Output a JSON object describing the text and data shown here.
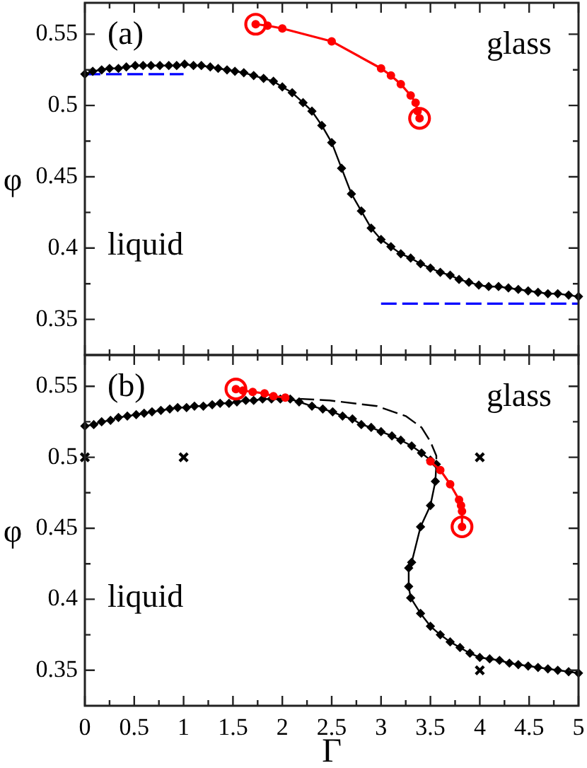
{
  "chart_data": [
    {
      "type": "line",
      "annotations": [
        "(a)",
        "glass",
        "liquid"
      ],
      "ylabel": "φ",
      "tick_labels": "y",
      "xlim": [
        0,
        5
      ],
      "xticks": [
        0,
        {
          "value": 0.25,
          "label": null
        },
        0.5,
        {
          "value": 0.75,
          "label": null
        },
        1,
        {
          "value": 1.25,
          "label": null
        },
        1.5,
        {
          "value": 1.75,
          "label": null
        },
        2,
        {
          "value": 2.25,
          "label": null
        },
        2.5,
        {
          "value": 2.75,
          "label": null
        },
        3,
        {
          "value": 3.25,
          "label": null
        },
        3.5,
        {
          "value": 3.75,
          "label": null
        },
        4,
        {
          "value": 4.25,
          "label": null
        },
        4.5,
        {
          "value": 4.75,
          "label": null
        },
        5
      ],
      "ylim": [
        0.325,
        0.572
      ],
      "yticks": [
        0.35,
        {
          "value": 0.375,
          "label": null
        },
        0.4,
        {
          "value": 0.425,
          "label": null
        },
        0.45,
        {
          "value": 0.475,
          "label": null
        },
        0.5,
        {
          "value": 0.525,
          "label": null
        },
        0.55
      ],
      "series": [
        {
          "type": "line",
          "color": "#0000ff",
          "line_style": "dashed",
          "marker": "none",
          "x": [
            0,
            1
          ],
          "values": [
            0.522,
            0.522
          ]
        },
        {
          "type": "line",
          "color": "#0000ff",
          "line_style": "dashed",
          "marker": "none",
          "x": [
            3,
            5
          ],
          "values": [
            0.361,
            0.361
          ]
        },
        {
          "type": "line",
          "color": "#000000",
          "marker": "diamond",
          "x": [
            0,
            0.08,
            0.17,
            0.25,
            0.34,
            0.42,
            0.51,
            0.59,
            0.67,
            0.76,
            0.85,
            0.93,
            1.01,
            1.1,
            1.18,
            1.27,
            1.35,
            1.44,
            1.52,
            1.61,
            1.71,
            1.81,
            1.91,
            2.0,
            2.1,
            2.21,
            2.3,
            2.4,
            2.5,
            2.6,
            2.7,
            2.8,
            2.9,
            3.0,
            3.1,
            3.2,
            3.3,
            3.4,
            3.5,
            3.6,
            3.7,
            3.79,
            3.89,
            3.99,
            4.09,
            4.19,
            4.29,
            4.39,
            4.49,
            4.59,
            4.69,
            4.79,
            4.9,
            5.0
          ],
          "values": [
            0.522,
            0.524,
            0.525,
            0.526,
            0.526,
            0.527,
            0.528,
            0.528,
            0.528,
            0.528,
            0.528,
            0.528,
            0.529,
            0.528,
            0.528,
            0.527,
            0.526,
            0.525,
            0.524,
            0.523,
            0.521,
            0.519,
            0.517,
            0.513,
            0.509,
            0.502,
            0.496,
            0.486,
            0.474,
            0.456,
            0.438,
            0.426,
            0.414,
            0.406,
            0.401,
            0.396,
            0.393,
            0.389,
            0.386,
            0.383,
            0.381,
            0.378,
            0.376,
            0.374,
            0.373,
            0.373,
            0.372,
            0.371,
            0.37,
            0.369,
            0.368,
            0.368,
            0.367,
            0.366
          ]
        },
        {
          "type": "line",
          "color": "#ff0000",
          "marker": "circle",
          "x": [
            1.73,
            1.85,
            2.0,
            2.5,
            3.0,
            3.1,
            3.2,
            3.3,
            3.35,
            3.37,
            3.39
          ],
          "values": [
            0.557,
            0.556,
            0.554,
            0.545,
            0.526,
            0.521,
            0.515,
            0.507,
            0.502,
            0.496,
            0.491
          ]
        },
        {
          "type": "scatter",
          "color": "#ff0000",
          "marker": "circle",
          "x": [
            1.73,
            3.39
          ],
          "values": [
            0.557,
            0.491
          ]
        }
      ]
    },
    {
      "type": "line",
      "annotations": [
        "(b)",
        "glass",
        "liquid"
      ],
      "ylabel": "φ",
      "xlabel": "Γ",
      "xlim": [
        0,
        5
      ],
      "xticks": [
        0,
        {
          "value": 0.25,
          "label": null
        },
        0.5,
        {
          "value": 0.75,
          "label": null
        },
        1,
        {
          "value": 1.25,
          "label": null
        },
        1.5,
        {
          "value": 1.75,
          "label": null
        },
        2,
        {
          "value": 2.25,
          "label": null
        },
        2.5,
        {
          "value": 2.75,
          "label": null
        },
        3,
        {
          "value": 3.25,
          "label": null
        },
        3.5,
        {
          "value": 3.75,
          "label": null
        },
        4,
        {
          "value": 4.25,
          "label": null
        },
        4.5,
        {
          "value": 4.75,
          "label": null
        },
        5
      ],
      "ylim": [
        0.325,
        0.572
      ],
      "yticks": [
        0.35,
        {
          "value": 0.375,
          "label": null
        },
        0.4,
        {
          "value": 0.425,
          "label": null
        },
        0.45,
        {
          "value": 0.475,
          "label": null
        },
        0.5,
        {
          "value": 0.525,
          "label": null
        },
        0.55
      ],
      "series": [
        {
          "type": "line",
          "color": "#000000",
          "line_style": "dashed",
          "marker": "none",
          "x": [
            1.95,
            2.48,
            2.96,
            3.25,
            3.41,
            3.5,
            3.56,
            3.56
          ],
          "values": [
            0.542,
            0.54,
            0.536,
            0.529,
            0.521,
            0.511,
            0.501,
            0.495
          ]
        },
        {
          "type": "line",
          "color": "#000000",
          "marker": "diamond",
          "x": [
            0,
            0.09,
            0.17,
            0.26,
            0.34,
            0.43,
            0.52,
            0.6,
            0.68,
            0.77,
            0.86,
            0.94,
            1.03,
            1.11,
            1.2,
            1.29,
            1.37,
            1.46,
            1.54,
            1.63,
            1.71,
            1.8,
            1.89,
            1.98,
            2.08,
            2.17,
            2.3,
            2.41,
            2.51,
            2.61,
            2.71,
            2.8,
            2.9,
            3.0,
            3.11,
            3.2,
            3.31,
            3.41,
            3.5,
            3.56,
            3.55,
            3.5,
            3.4,
            3.31,
            3.28,
            3.28,
            3.3,
            3.4,
            3.5,
            3.6,
            3.7,
            3.8,
            3.9,
            4.0,
            4.1,
            4.2,
            4.3,
            4.39,
            4.49,
            4.59,
            4.69,
            4.79,
            4.9,
            5.0
          ],
          "values": [
            0.522,
            0.523,
            0.525,
            0.526,
            0.528,
            0.529,
            0.53,
            0.531,
            0.532,
            0.533,
            0.534,
            0.535,
            0.535,
            0.536,
            0.536,
            0.537,
            0.538,
            0.538,
            0.539,
            0.54,
            0.54,
            0.541,
            0.541,
            0.541,
            0.541,
            0.539,
            0.536,
            0.534,
            0.532,
            0.529,
            0.527,
            0.523,
            0.521,
            0.518,
            0.515,
            0.512,
            0.508,
            0.503,
            0.498,
            0.495,
            0.483,
            0.466,
            0.451,
            0.426,
            0.422,
            0.409,
            0.401,
            0.39,
            0.381,
            0.375,
            0.37,
            0.366,
            0.362,
            0.359,
            0.358,
            0.357,
            0.355,
            0.354,
            0.353,
            0.352,
            0.351,
            0.35,
            0.349,
            0.348
          ]
        },
        {
          "type": "line",
          "color": "#ff0000",
          "marker": "circle",
          "x": [
            1.53,
            1.6,
            1.7,
            1.82,
            1.91,
            2.03
          ],
          "values": [
            0.548,
            0.547,
            0.546,
            0.545,
            0.543,
            0.542
          ]
        },
        {
          "type": "line",
          "color": "#ff0000",
          "marker": "circle",
          "x": [
            3.5,
            3.6,
            3.7,
            3.79,
            3.81,
            3.82,
            3.82
          ],
          "values": [
            0.497,
            0.491,
            0.481,
            0.47,
            0.466,
            0.462,
            0.451
          ]
        },
        {
          "type": "scatter",
          "color": "#ff0000",
          "marker": "circle",
          "x": [
            1.53,
            3.82
          ],
          "values": [
            0.548,
            0.451
          ]
        },
        {
          "type": "scatter",
          "color": "#000000",
          "marker": "cross",
          "x": [
            0,
            1,
            4,
            4
          ],
          "values": [
            0.5,
            0.5,
            0.5,
            0.35
          ]
        }
      ]
    }
  ]
}
